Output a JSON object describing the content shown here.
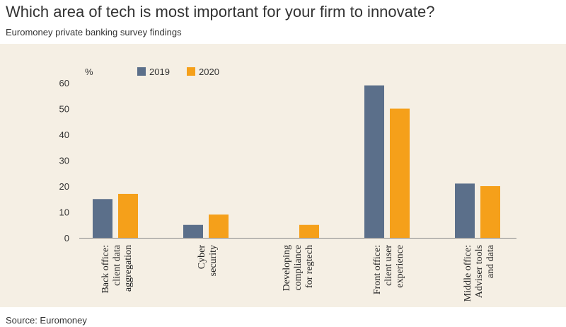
{
  "header": {
    "title": "Which area of tech is most important for your firm to innovate?",
    "subtitle": "Euromoney private banking survey findings"
  },
  "footer": {
    "source": "Source: Euromoney"
  },
  "colors": {
    "series_2019": "#5b6f8a",
    "series_2020": "#f5a01a",
    "panel": "#f5efe4"
  },
  "chart_data": {
    "type": "bar",
    "ylabel": "%",
    "ylim": [
      0,
      60
    ],
    "yticks": [
      0,
      10,
      20,
      30,
      40,
      50,
      60
    ],
    "grid": false,
    "legend": "top-left",
    "categories": [
      [
        "Back office:",
        "client data",
        "aggregation"
      ],
      [
        "Cyber",
        "security"
      ],
      [
        "Developing",
        "compliance",
        "for regtech"
      ],
      [
        "Front office:",
        "client user",
        "experience"
      ],
      [
        "Middle office:",
        "Adviser tools",
        "and data"
      ]
    ],
    "series": [
      {
        "name": "2019",
        "values": [
          15,
          5,
          0,
          59,
          21
        ]
      },
      {
        "name": "2020",
        "values": [
          17,
          9,
          5,
          50,
          20
        ]
      }
    ]
  }
}
